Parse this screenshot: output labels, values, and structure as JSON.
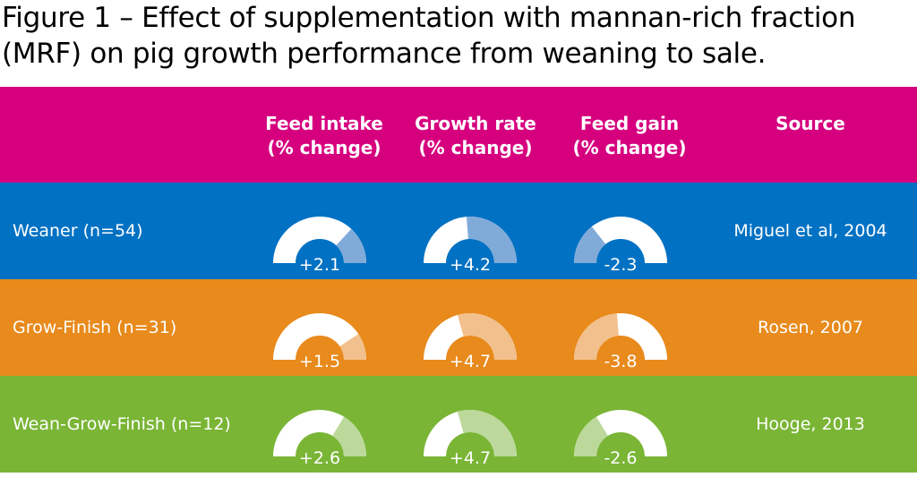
{
  "title": {
    "line1": "Figure 1 – Effect of supplementation with mannan-rich fraction",
    "line2": "(MRF) on pig growth performance from weaning to sale."
  },
  "colors": {
    "header": "#d6007f",
    "weaner": "#0071c3",
    "grow_finish": "#e88a1c",
    "wean_grow_finish": "#7ab536",
    "weaner_fill": "#80abd9",
    "grow_finish_fill": "#f2c08c",
    "wean_grow_finish_fill": "#bcd99b",
    "gauge_base": "#ffffff"
  },
  "columns": {
    "feed_intake": [
      "Feed intake",
      "(% change)"
    ],
    "growth_rate": [
      "Growth rate",
      "(% change)"
    ],
    "feed_gain": [
      "Feed gain",
      "(% change)"
    ],
    "source": [
      "Source"
    ]
  },
  "chart_data": {
    "type": "table",
    "columns": [
      "Feed intake (% change)",
      "Growth rate (% change)",
      "Feed gain (% change)",
      "Source"
    ],
    "rows": [
      {
        "label": "Weaner (n=54)",
        "feed_intake": 2.1,
        "growth_rate": 4.2,
        "feed_gain": -2.3,
        "feed_intake_text": "+2.1",
        "growth_rate_text": "+4.2",
        "feed_gain_text": "-2.3",
        "source": "Miguel et al, 2004"
      },
      {
        "label": "Grow-Finish (n=31)",
        "feed_intake": 1.5,
        "growth_rate": 4.7,
        "feed_gain": -3.8,
        "feed_intake_text": "+1.5",
        "growth_rate_text": "+4.7",
        "feed_gain_text": "-3.8",
        "source": "Rosen, 2007"
      },
      {
        "label": "Wean-Grow-Finish (n=12)",
        "feed_intake": 2.6,
        "growth_rate": 4.7,
        "feed_gain": -2.6,
        "feed_intake_text": "+2.6",
        "growth_rate_text": "+4.7",
        "feed_gain_text": "-2.6",
        "source": "Hooge, 2013"
      }
    ]
  }
}
